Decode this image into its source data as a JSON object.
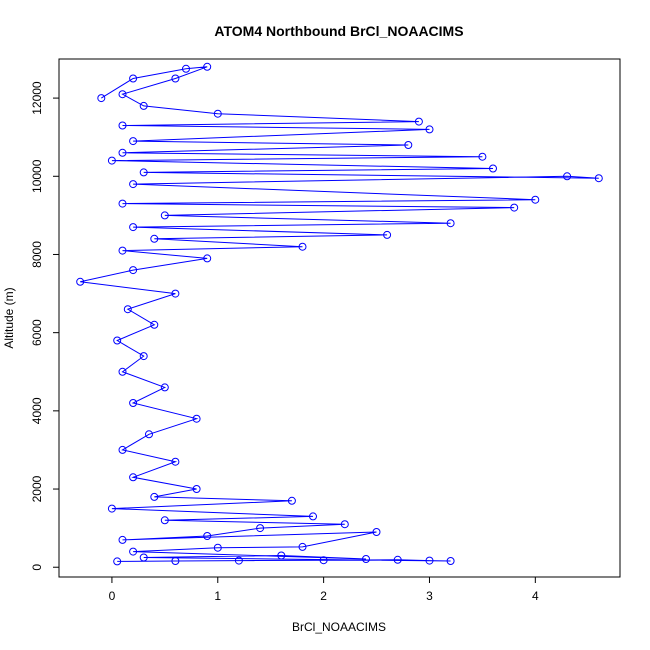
{
  "chart_data": {
    "type": "scatter",
    "title": "ATOM4 Northbound BrCl_NOAACIMS",
    "xlabel": "BrCl_NOAACIMS",
    "ylabel": "Altitude (m)",
    "xlim": [
      -0.5,
      4.8
    ],
    "ylim": [
      -250,
      13000
    ],
    "x_ticks": [
      0,
      1,
      2,
      3,
      4
    ],
    "x_tick_labels": [
      "0",
      "1",
      "2",
      "3",
      "4"
    ],
    "y_ticks": [
      0,
      2000,
      4000,
      6000,
      8000,
      10000,
      12000
    ],
    "y_tick_labels": [
      "0",
      "2000",
      "4000",
      "6000",
      "8000",
      "10000",
      "12000"
    ],
    "grid": false,
    "legend": "none",
    "marker": "open-circle",
    "connected": true,
    "series": [
      {
        "points": [
          [
            0.05,
            150
          ],
          [
            0.6,
            160
          ],
          [
            1.2,
            170
          ],
          [
            2.0,
            180
          ],
          [
            2.7,
            190
          ],
          [
            3.0,
            170
          ],
          [
            3.2,
            160
          ],
          [
            0.3,
            250
          ],
          [
            1.6,
            300
          ],
          [
            2.4,
            210
          ],
          [
            0.2,
            400
          ],
          [
            1.0,
            500
          ],
          [
            1.8,
            520
          ],
          [
            2.5,
            900
          ],
          [
            0.1,
            700
          ],
          [
            0.9,
            800
          ],
          [
            1.4,
            1000
          ],
          [
            2.2,
            1100
          ],
          [
            0.5,
            1200
          ],
          [
            1.9,
            1300
          ],
          [
            0.0,
            1500
          ],
          [
            1.7,
            1700
          ],
          [
            0.4,
            1800
          ],
          [
            0.8,
            2000
          ],
          [
            0.2,
            2300
          ],
          [
            0.6,
            2700
          ],
          [
            0.1,
            3000
          ],
          [
            0.35,
            3400
          ],
          [
            0.8,
            3800
          ],
          [
            0.2,
            4200
          ],
          [
            0.5,
            4600
          ],
          [
            0.1,
            5000
          ],
          [
            0.3,
            5400
          ],
          [
            0.05,
            5800
          ],
          [
            0.4,
            6200
          ],
          [
            0.15,
            6600
          ],
          [
            0.6,
            7000
          ],
          [
            -0.3,
            7300
          ],
          [
            0.2,
            7600
          ],
          [
            0.9,
            7900
          ],
          [
            0.1,
            8100
          ],
          [
            1.8,
            8200
          ],
          [
            0.4,
            8400
          ],
          [
            2.6,
            8500
          ],
          [
            0.2,
            8700
          ],
          [
            3.2,
            8800
          ],
          [
            0.5,
            9000
          ],
          [
            3.8,
            9200
          ],
          [
            0.1,
            9300
          ],
          [
            4.0,
            9400
          ],
          [
            0.2,
            9800
          ],
          [
            4.3,
            10000
          ],
          [
            4.6,
            9950
          ],
          [
            0.3,
            10100
          ],
          [
            3.6,
            10200
          ],
          [
            0.0,
            10400
          ],
          [
            3.5,
            10500
          ],
          [
            0.1,
            10600
          ],
          [
            2.8,
            10800
          ],
          [
            0.2,
            10900
          ],
          [
            3.0,
            11200
          ],
          [
            0.1,
            11300
          ],
          [
            2.9,
            11400
          ],
          [
            1.0,
            11600
          ],
          [
            0.3,
            11800
          ],
          [
            0.1,
            12100
          ],
          [
            0.6,
            12500
          ],
          [
            0.9,
            12800
          ],
          [
            0.7,
            12750
          ],
          [
            0.2,
            12500
          ],
          [
            -0.1,
            12000
          ]
        ]
      }
    ],
    "colors": {
      "series": "#0000ff",
      "axis": "#000000",
      "background": "#ffffff"
    }
  }
}
